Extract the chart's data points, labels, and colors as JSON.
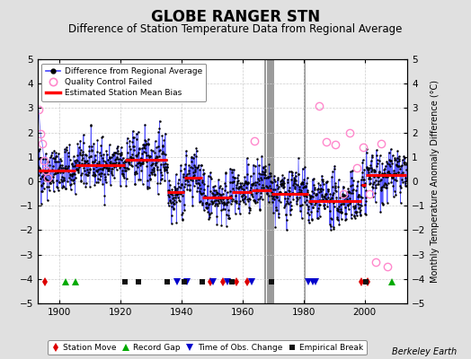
{
  "title": "GLOBE RANGER STN",
  "subtitle": "Difference of Station Temperature Data from Regional Average",
  "ylabel_right": "Monthly Temperature Anomaly Difference (°C)",
  "credit": "Berkeley Earth",
  "ylim": [
    -5,
    5
  ],
  "xlim": [
    1893,
    2014
  ],
  "yticks": [
    -5,
    -4,
    -3,
    -2,
    -1,
    0,
    1,
    2,
    3,
    4,
    5
  ],
  "xticks": [
    1900,
    1920,
    1940,
    1960,
    1980,
    2000
  ],
  "bg_color": "#e0e0e0",
  "plot_bg_color": "#ffffff",
  "grid_color": "#cccccc",
  "title_fontsize": 12,
  "subtitle_fontsize": 8.5,
  "seed": 42,
  "station_moves": [
    1895.5,
    1949.5,
    1953.5,
    1958.0,
    1961.5,
    1999.0,
    2001.0
  ],
  "record_gaps": [
    1902.0,
    1905.5,
    2009.0
  ],
  "obs_changes": [
    1938.5,
    1942.0,
    1950.5,
    1955.0,
    1963.0,
    1981.5,
    1983.0,
    1984.0
  ],
  "empirical_breaks": [
    1921.5,
    1926.0,
    1935.5,
    1941.0,
    1947.0,
    1956.5,
    1969.5,
    2000.5
  ],
  "gap_lines": [
    1967.5,
    1968.2,
    1968.9,
    1969.6,
    1970.2,
    1980.5
  ],
  "bias_segments": [
    {
      "x_start": 1893,
      "x_end": 1902.0,
      "bias": 0.45
    },
    {
      "x_start": 1902.0,
      "x_end": 1905.5,
      "bias": 0.45
    },
    {
      "x_start": 1905.5,
      "x_end": 1921.5,
      "bias": 0.65
    },
    {
      "x_start": 1921.5,
      "x_end": 1926.0,
      "bias": 0.9
    },
    {
      "x_start": 1926.0,
      "x_end": 1935.5,
      "bias": 0.9
    },
    {
      "x_start": 1935.5,
      "x_end": 1941.0,
      "bias": -0.45
    },
    {
      "x_start": 1941.0,
      "x_end": 1947.0,
      "bias": 0.15
    },
    {
      "x_start": 1947.0,
      "x_end": 1956.5,
      "bias": -0.65
    },
    {
      "x_start": 1956.5,
      "x_end": 1963.0,
      "bias": -0.45
    },
    {
      "x_start": 1963.0,
      "x_end": 1969.5,
      "bias": -0.35
    },
    {
      "x_start": 1969.5,
      "x_end": 1981.5,
      "bias": -0.5
    },
    {
      "x_start": 1981.5,
      "x_end": 1999.0,
      "bias": -0.8
    },
    {
      "x_start": 1999.0,
      "x_end": 2000.5,
      "bias": -0.15
    },
    {
      "x_start": 2000.5,
      "x_end": 2013.5,
      "bias": 0.25
    }
  ],
  "qc_fail_early": {
    "years": [
      1893.3,
      1893.9,
      1894.5,
      1895.1,
      1895.7,
      1896.3
    ],
    "values": [
      2.95,
      1.95,
      1.55,
      0.85,
      0.45,
      0.15
    ]
  },
  "qc_fail_late": {
    "years": [
      1964.0,
      1985.0,
      1987.5,
      1990.5,
      1993.0,
      1995.0,
      1997.5,
      1999.5,
      2001.5,
      2003.5,
      2005.5,
      2007.5
    ],
    "values": [
      1.65,
      3.1,
      1.6,
      1.5,
      -0.5,
      2.0,
      0.55,
      1.4,
      -0.5,
      -3.3,
      1.55,
      -3.5
    ]
  }
}
